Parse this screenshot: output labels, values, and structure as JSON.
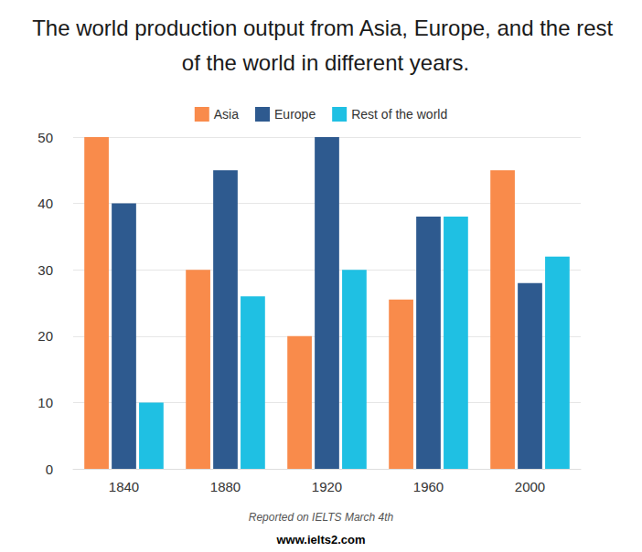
{
  "chart_data": {
    "type": "bar",
    "title": "The world production output from Asia, Europe, and the rest of the world in different years.",
    "categories": [
      "1840",
      "1880",
      "1920",
      "1960",
      "2000"
    ],
    "series": [
      {
        "name": "Asia",
        "color": "#f98b4b",
        "values": [
          50,
          30,
          20,
          25.5,
          45
        ]
      },
      {
        "name": "Europe",
        "color": "#2e5a8f",
        "values": [
          40,
          45,
          50,
          38,
          28
        ]
      },
      {
        "name": "Rest of the world",
        "color": "#1fc0e3",
        "values": [
          10,
          26,
          30,
          38,
          32
        ]
      }
    ],
    "ylim": [
      0,
      50
    ],
    "yticks": [
      0,
      10,
      20,
      30,
      40,
      50
    ],
    "grid": true,
    "legend": "top",
    "annotations": [
      "Reported on IELTS March 4th",
      "www.ielts2.com"
    ]
  }
}
